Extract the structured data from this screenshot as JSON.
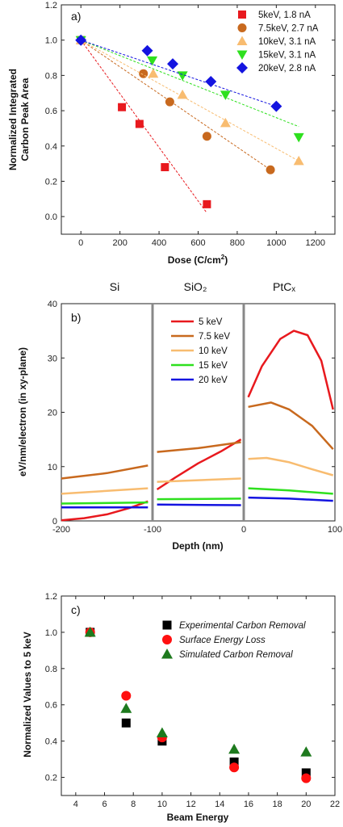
{
  "chart_data": [
    {
      "type": "scatter",
      "panel_label": "a)",
      "xlabel": "Dose (C/cm²)",
      "ylabel_lines": [
        "Normalized Integrated",
        "Carbon Peak Area"
      ],
      "xlim": [
        -100,
        1300
      ],
      "ylim": [
        -0.1,
        1.2
      ],
      "xticks": [
        0,
        200,
        400,
        600,
        800,
        1000,
        1200
      ],
      "yticks": [
        0.0,
        0.2,
        0.4,
        0.6,
        0.8,
        1.0,
        1.2
      ],
      "legend_position": "top-right",
      "series": [
        {
          "name": "5keV, 1.8 nA",
          "color": "#e8191e",
          "marker": "square",
          "x": [
            0,
            210,
            300,
            430,
            645
          ],
          "y": [
            1.0,
            0.62,
            0.525,
            0.28,
            0.07
          ],
          "fit": [
            [
              0,
              1.0
            ],
            [
              645,
              0.02
            ]
          ]
        },
        {
          "name": "7.5keV, 2.7 nA",
          "color": "#c8691e",
          "marker": "circle",
          "x": [
            0,
            320,
            455,
            645,
            970
          ],
          "y": [
            1.0,
            0.81,
            0.65,
            0.455,
            0.265
          ],
          "fit": [
            [
              0,
              1.0
            ],
            [
              970,
              0.265
            ]
          ]
        },
        {
          "name": "10keV, 3.1 nA",
          "color": "#f8bc70",
          "marker": "triangle-up",
          "x": [
            0,
            370,
            520,
            740,
            1115
          ],
          "y": [
            1.0,
            0.81,
            0.69,
            0.53,
            0.315
          ],
          "fit": [
            [
              0,
              1.0
            ],
            [
              1115,
              0.315
            ]
          ]
        },
        {
          "name": "15keV, 3.1 nA",
          "color": "#2ee01e",
          "marker": "triangle-down",
          "x": [
            0,
            365,
            520,
            740,
            1115
          ],
          "y": [
            1.0,
            0.885,
            0.8,
            0.69,
            0.45
          ],
          "fit": [
            [
              0,
              1.0
            ],
            [
              1115,
              0.51
            ]
          ]
        },
        {
          "name": "20keV, 2.8 nA",
          "color": "#1414e0",
          "marker": "diamond",
          "x": [
            0,
            340,
            470,
            665,
            1000
          ],
          "y": [
            1.0,
            0.94,
            0.865,
            0.765,
            0.625
          ],
          "fit": [
            [
              0,
              1.0
            ],
            [
              1000,
              0.625
            ]
          ]
        }
      ]
    },
    {
      "type": "line",
      "panel_label": "b)",
      "xlabel": "Depth (nm)",
      "ylabel": "eV/nm/electron (in xy-plane)",
      "xlim": [
        -200,
        100
      ],
      "ylim": [
        0,
        40
      ],
      "xticks": [
        -200,
        -100,
        0,
        100
      ],
      "yticks": [
        0,
        10,
        20,
        30,
        40
      ],
      "regions": [
        "Si",
        "SiO₂",
        "PtCₓ"
      ],
      "region_boundaries": [
        -100,
        0
      ],
      "legend_position": "upper-left of middle region",
      "series": [
        {
          "name": "5 keV",
          "color": "#e8191e",
          "segments": [
            {
              "x": [
                -200,
                -175,
                -150,
                -125,
                -105
              ],
              "y": [
                0.1,
                0.5,
                1.2,
                2.4,
                3.6
              ]
            },
            {
              "x": [
                -95,
                -75,
                -50,
                -25,
                -3
              ],
              "y": [
                5.8,
                8.0,
                10.6,
                12.8,
                15.0
              ]
            },
            {
              "x": [
                5,
                20,
                40,
                55,
                70,
                85,
                98
              ],
              "y": [
                22.8,
                28.5,
                33.5,
                35.0,
                34.2,
                29.5,
                20.5
              ]
            }
          ]
        },
        {
          "name": "7.5 keV",
          "color": "#c8691e",
          "segments": [
            {
              "x": [
                -200,
                -150,
                -105
              ],
              "y": [
                7.8,
                8.8,
                10.2
              ]
            },
            {
              "x": [
                -95,
                -50,
                -3
              ],
              "y": [
                12.7,
                13.4,
                14.5
              ]
            },
            {
              "x": [
                5,
                30,
                50,
                75,
                98
              ],
              "y": [
                21.0,
                21.8,
                20.5,
                17.5,
                13.2
              ]
            }
          ]
        },
        {
          "name": "10 keV",
          "color": "#f8bc70",
          "segments": [
            {
              "x": [
                -200,
                -105
              ],
              "y": [
                5.0,
                6.0
              ]
            },
            {
              "x": [
                -95,
                -3
              ],
              "y": [
                7.2,
                7.8
              ]
            },
            {
              "x": [
                5,
                25,
                50,
                75,
                98
              ],
              "y": [
                11.4,
                11.6,
                10.8,
                9.5,
                8.4
              ]
            }
          ]
        },
        {
          "name": "15 keV",
          "color": "#2ee01e",
          "segments": [
            {
              "x": [
                -200,
                -105
              ],
              "y": [
                3.2,
                3.4
              ]
            },
            {
              "x": [
                -95,
                -3
              ],
              "y": [
                4.0,
                4.1
              ]
            },
            {
              "x": [
                5,
                50,
                98
              ],
              "y": [
                6.0,
                5.6,
                5.0
              ]
            }
          ]
        },
        {
          "name": "20 keV",
          "color": "#1414e0",
          "segments": [
            {
              "x": [
                -200,
                -105
              ],
              "y": [
                2.5,
                2.5
              ]
            },
            {
              "x": [
                -95,
                -3
              ],
              "y": [
                3.0,
                2.9
              ]
            },
            {
              "x": [
                5,
                50,
                98
              ],
              "y": [
                4.3,
                4.1,
                3.7
              ]
            }
          ]
        }
      ]
    },
    {
      "type": "scatter",
      "panel_label": "c)",
      "xlabel": "Beam Energy",
      "ylabel": "Normalized Values to 5 keV",
      "xlim": [
        3,
        22
      ],
      "ylim": [
        0.1,
        1.2
      ],
      "xticks": [
        4,
        6,
        8,
        10,
        12,
        14,
        16,
        18,
        20,
        22
      ],
      "yticks": [
        0.2,
        0.4,
        0.6,
        0.8,
        1.0,
        1.2
      ],
      "legend_position": "top-right",
      "series": [
        {
          "name": "Experimental Carbon Removal",
          "color": "#000000",
          "marker": "square",
          "x": [
            5,
            7.5,
            10,
            15,
            20
          ],
          "y": [
            1.0,
            0.5,
            0.4,
            0.285,
            0.225
          ]
        },
        {
          "name": "Surface Energy Loss",
          "color": "#ff1010",
          "marker": "circle",
          "x": [
            5,
            7.5,
            10,
            15,
            20
          ],
          "y": [
            1.0,
            0.65,
            0.42,
            0.255,
            0.195
          ]
        },
        {
          "name": "Simulated Carbon Removal",
          "color": "#1e7a1e",
          "marker": "triangle-up",
          "x": [
            5,
            7.5,
            10,
            15,
            20
          ],
          "y": [
            1.0,
            0.58,
            0.445,
            0.355,
            0.34
          ]
        }
      ]
    }
  ]
}
